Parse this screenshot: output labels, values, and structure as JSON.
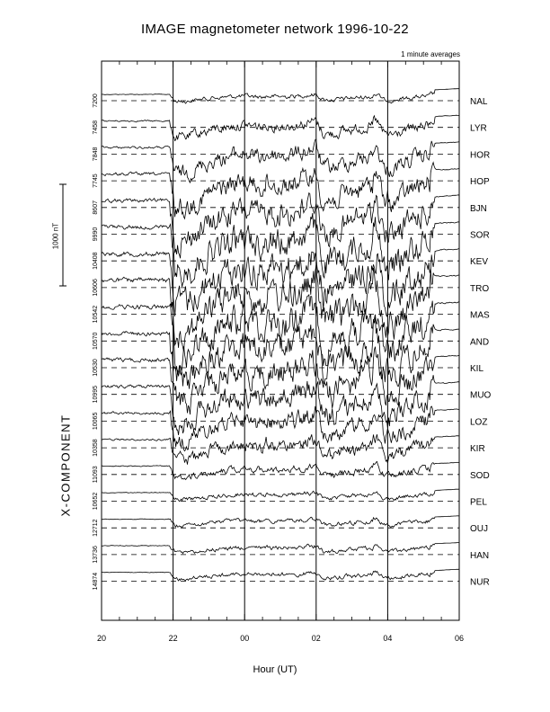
{
  "chart_data": {
    "type": "line",
    "title": "IMAGE magnetometer network 1996-10-22",
    "subtitle": "1 minute averages",
    "xlabel": "Hour (UT)",
    "ylabel": "X-COMPONENT",
    "x_ticks": [
      "20",
      "22",
      "00",
      "02",
      "04",
      "06"
    ],
    "scale_bar": "1000 nT",
    "grid": "dashed baselines per station; vertical lines at 22, 00, 02, 04 UT",
    "stations": [
      {
        "name": "NAL",
        "baseline": "7200"
      },
      {
        "name": "LYR",
        "baseline": "7458"
      },
      {
        "name": "HOR",
        "baseline": "7848"
      },
      {
        "name": "HOP",
        "baseline": "7745"
      },
      {
        "name": "BJN",
        "baseline": "8607"
      },
      {
        "name": "SOR",
        "baseline": "9990"
      },
      {
        "name": "KEV",
        "baseline": "10408"
      },
      {
        "name": "TRO",
        "baseline": "10606"
      },
      {
        "name": "MAS",
        "baseline": "10542"
      },
      {
        "name": "AND",
        "baseline": "10570"
      },
      {
        "name": "KIL",
        "baseline": "10530"
      },
      {
        "name": "MUO",
        "baseline": "10995"
      },
      {
        "name": "LOZ",
        "baseline": "10065"
      },
      {
        "name": "KIR",
        "baseline": "10358"
      },
      {
        "name": "SOD",
        "baseline": "11093"
      },
      {
        "name": "PEL",
        "baseline": "10652"
      },
      {
        "name": "OUJ",
        "baseline": "12712"
      },
      {
        "name": "HAN",
        "baseline": "13736"
      },
      {
        "name": "NUR",
        "baseline": "14874"
      }
    ]
  }
}
